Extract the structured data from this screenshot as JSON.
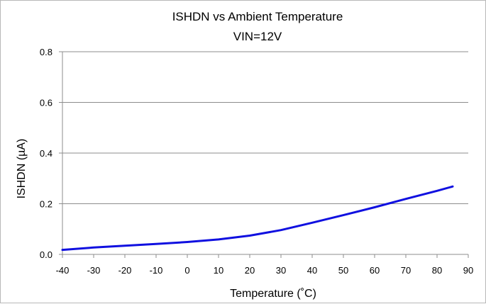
{
  "chart_data": {
    "type": "line",
    "title": "ISHDN vs Ambient Temperature",
    "subtitle": "VIN=12V",
    "xlabel": "Temperature (˚C)",
    "ylabel": "ISHDN (µA)",
    "xlim": [
      -40,
      90
    ],
    "ylim": [
      0,
      0.8
    ],
    "x_ticks": [
      "-40",
      "-30",
      "-20",
      "-10",
      "0",
      "10",
      "20",
      "30",
      "40",
      "50",
      "60",
      "70",
      "80",
      "90"
    ],
    "y_ticks": [
      "0.0",
      "0.2",
      "0.4",
      "0.6",
      "0.8"
    ],
    "grid": true,
    "legend": "none",
    "series": [
      {
        "color": "#1010e0",
        "x": [
          -40,
          -30,
          -20,
          -10,
          0,
          10,
          20,
          30,
          40,
          50,
          60,
          70,
          80,
          85
        ],
        "y": [
          0.018,
          0.027,
          0.034,
          0.041,
          0.049,
          0.059,
          0.074,
          0.096,
          0.125,
          0.155,
          0.186,
          0.219,
          0.251,
          0.268
        ]
      }
    ]
  }
}
